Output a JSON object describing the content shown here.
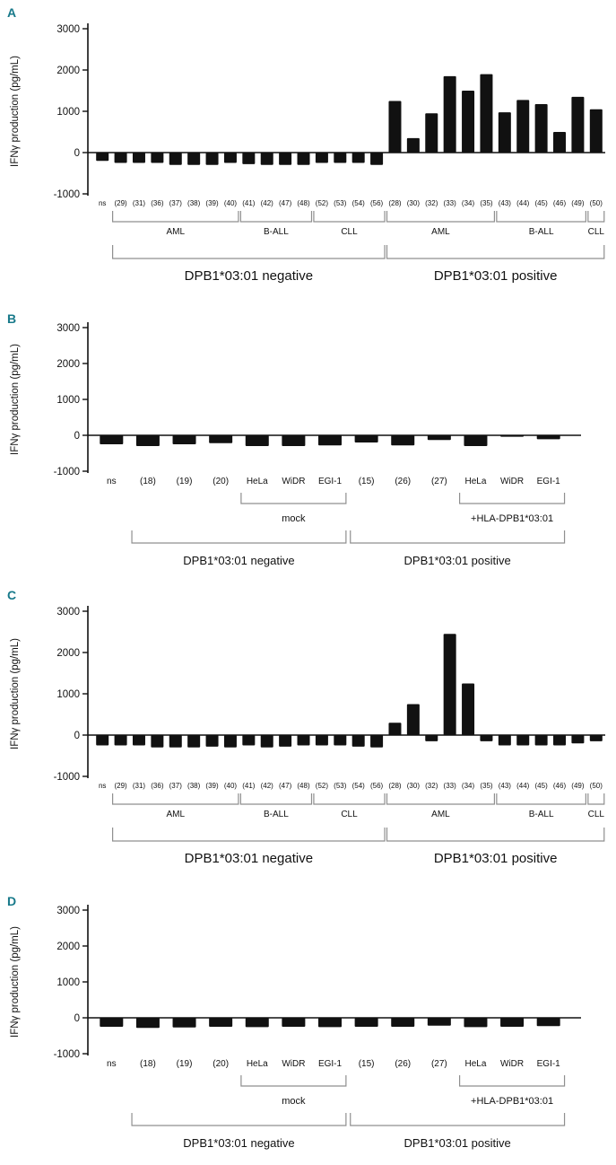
{
  "figure": {
    "panel_letter_color": "#17798a",
    "bar_color": "#111111",
    "bracket_color": "#8f8f8f",
    "axis_color": "#111111"
  },
  "chart_data": [
    {
      "type": "bar",
      "panel_label": "A",
      "title": "",
      "ylabel": "IFNγ production (pg/mL)",
      "ylim": [
        -1000,
        3000
      ],
      "yticks": [
        3000,
        2000,
        1000,
        0,
        -1000
      ],
      "grid": false,
      "legend": "none",
      "categories": [
        "ns",
        "(29)",
        "(31)",
        "(36)",
        "(37)",
        "(38)",
        "(39)",
        "(40)",
        "(41)",
        "(42)",
        "(47)",
        "(48)",
        "(52)",
        "(53)",
        "(54)",
        "(56)",
        "(28)",
        "(30)",
        "(32)",
        "(33)",
        "(34)",
        "(35)",
        "(43)",
        "(44)",
        "(45)",
        "(46)",
        "(49)",
        "(50)"
      ],
      "values": [
        -200,
        -250,
        -250,
        -250,
        -300,
        -300,
        -300,
        -250,
        -280,
        -300,
        -300,
        -300,
        -250,
        -250,
        -250,
        -300,
        1250,
        350,
        950,
        1850,
        1500,
        1900,
        975,
        1275,
        1175,
        500,
        1350,
        1050
      ],
      "sub_groups": [
        {
          "label": "AML",
          "start": 1,
          "end": 7
        },
        {
          "label": "B-ALL",
          "start": 8,
          "end": 11
        },
        {
          "label": "CLL",
          "start": 12,
          "end": 15
        },
        {
          "label": "AML",
          "start": 16,
          "end": 21
        },
        {
          "label": "B-ALL",
          "start": 22,
          "end": 26
        },
        {
          "label": "CLL",
          "start": 27,
          "end": 27
        }
      ],
      "big_groups": [
        {
          "label": "DPB1*03:01 negative",
          "start": 1,
          "end": 15
        },
        {
          "label": "DPB1*03:01 positive",
          "start": 16,
          "end": 27
        }
      ]
    },
    {
      "type": "bar",
      "panel_label": "B",
      "title": "",
      "ylabel": "IFNγ production (pg/mL)",
      "ylim": [
        -1000,
        3000
      ],
      "yticks": [
        3000,
        2000,
        1000,
        0,
        -1000
      ],
      "grid": false,
      "legend": "none",
      "categories": [
        "ns",
        "(18)",
        "(19)",
        "(20)",
        "HeLa",
        "WiDR",
        "EGI-1",
        "(15)",
        "(26)",
        "(27)",
        "HeLa",
        "WiDR",
        "EGI-1"
      ],
      "values": [
        -250,
        -300,
        -250,
        -220,
        -300,
        -300,
        -280,
        -200,
        -280,
        -130,
        -300,
        -40,
        -110
      ],
      "sub_groups": [
        {
          "label": "mock",
          "start": 4,
          "end": 6
        },
        {
          "label": "+HLA-DPB1*03:01",
          "start": 10,
          "end": 12
        }
      ],
      "big_groups": [
        {
          "label": "DPB1*03:01 negative",
          "start": 1,
          "end": 6
        },
        {
          "label": "DPB1*03:01 positive",
          "start": 7,
          "end": 12
        }
      ]
    },
    {
      "type": "bar",
      "panel_label": "C",
      "title": "",
      "ylabel": "IFNγ production (pg/mL)",
      "ylim": [
        -1000,
        3000
      ],
      "yticks": [
        3000,
        2000,
        1000,
        0,
        -1000
      ],
      "grid": false,
      "legend": "none",
      "categories": [
        "ns",
        "(29)",
        "(31)",
        "(36)",
        "(37)",
        "(38)",
        "(39)",
        "(40)",
        "(41)",
        "(42)",
        "(47)",
        "(48)",
        "(52)",
        "(53)",
        "(54)",
        "(56)",
        "(28)",
        "(30)",
        "(32)",
        "(33)",
        "(34)",
        "(35)",
        "(43)",
        "(44)",
        "(45)",
        "(46)",
        "(49)",
        "(50)"
      ],
      "values": [
        -250,
        -250,
        -250,
        -300,
        -300,
        -300,
        -280,
        -300,
        -250,
        -300,
        -280,
        -250,
        -250,
        -250,
        -280,
        -300,
        300,
        750,
        -150,
        2450,
        1250,
        -150,
        -250,
        -250,
        -250,
        -250,
        -200,
        -150
      ],
      "sub_groups": [
        {
          "label": "AML",
          "start": 1,
          "end": 7
        },
        {
          "label": "B-ALL",
          "start": 8,
          "end": 11
        },
        {
          "label": "CLL",
          "start": 12,
          "end": 15
        },
        {
          "label": "AML",
          "start": 16,
          "end": 21
        },
        {
          "label": "B-ALL",
          "start": 22,
          "end": 26
        },
        {
          "label": "CLL",
          "start": 27,
          "end": 27
        }
      ],
      "big_groups": [
        {
          "label": "DPB1*03:01 negative",
          "start": 1,
          "end": 15
        },
        {
          "label": "DPB1*03:01 positive",
          "start": 16,
          "end": 27
        }
      ]
    },
    {
      "type": "bar",
      "panel_label": "D",
      "title": "",
      "ylabel": "IFNγ production (pg/mL)",
      "ylim": [
        -1000,
        3000
      ],
      "yticks": [
        3000,
        2000,
        1000,
        0,
        -1000
      ],
      "grid": false,
      "legend": "none",
      "categories": [
        "ns",
        "(18)",
        "(19)",
        "(20)",
        "HeLa",
        "WiDR",
        "EGI-1",
        "(15)",
        "(26)",
        "(27)",
        "HeLa",
        "WiDR",
        "EGI-1"
      ],
      "values": [
        -250,
        -280,
        -270,
        -250,
        -260,
        -250,
        -260,
        -250,
        -250,
        -220,
        -260,
        -250,
        -230
      ],
      "sub_groups": [
        {
          "label": "mock",
          "start": 4,
          "end": 6
        },
        {
          "label": "+HLA-DPB1*03:01",
          "start": 10,
          "end": 12
        }
      ],
      "big_groups": [
        {
          "label": "DPB1*03:01 negative",
          "start": 1,
          "end": 6
        },
        {
          "label": "DPB1*03:01 positive",
          "start": 7,
          "end": 12
        }
      ]
    }
  ]
}
